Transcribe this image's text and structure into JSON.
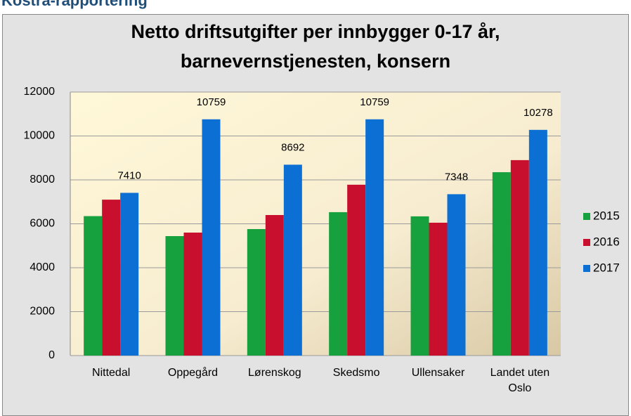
{
  "heading": "Kostra-rapportering",
  "chart_data": {
    "type": "bar",
    "title": [
      "Netto driftsutgifter per innbygger 0-17 år,",
      "barnevernstjenesten, konsern"
    ],
    "categories": [
      "Nittedal",
      "Oppegård",
      "Lørenskog",
      "Skedsmo",
      "Ullensaker",
      "Landet uten Oslo"
    ],
    "series": [
      {
        "name": "2015",
        "color": "#17a03e",
        "values": [
          6350,
          5440,
          5760,
          6530,
          6340,
          8350
        ]
      },
      {
        "name": "2016",
        "color": "#c8102e",
        "values": [
          7100,
          5600,
          6400,
          7780,
          6050,
          8900
        ]
      },
      {
        "name": "2017",
        "color": "#0b6fd3",
        "values": [
          7410,
          10759,
          8692,
          10759,
          7348,
          10278
        ],
        "data_labels": true
      }
    ],
    "ylim": [
      0,
      12000
    ],
    "yticks": [
      0,
      2000,
      4000,
      6000,
      8000,
      10000,
      12000
    ],
    "grid": true,
    "legend": "right"
  }
}
